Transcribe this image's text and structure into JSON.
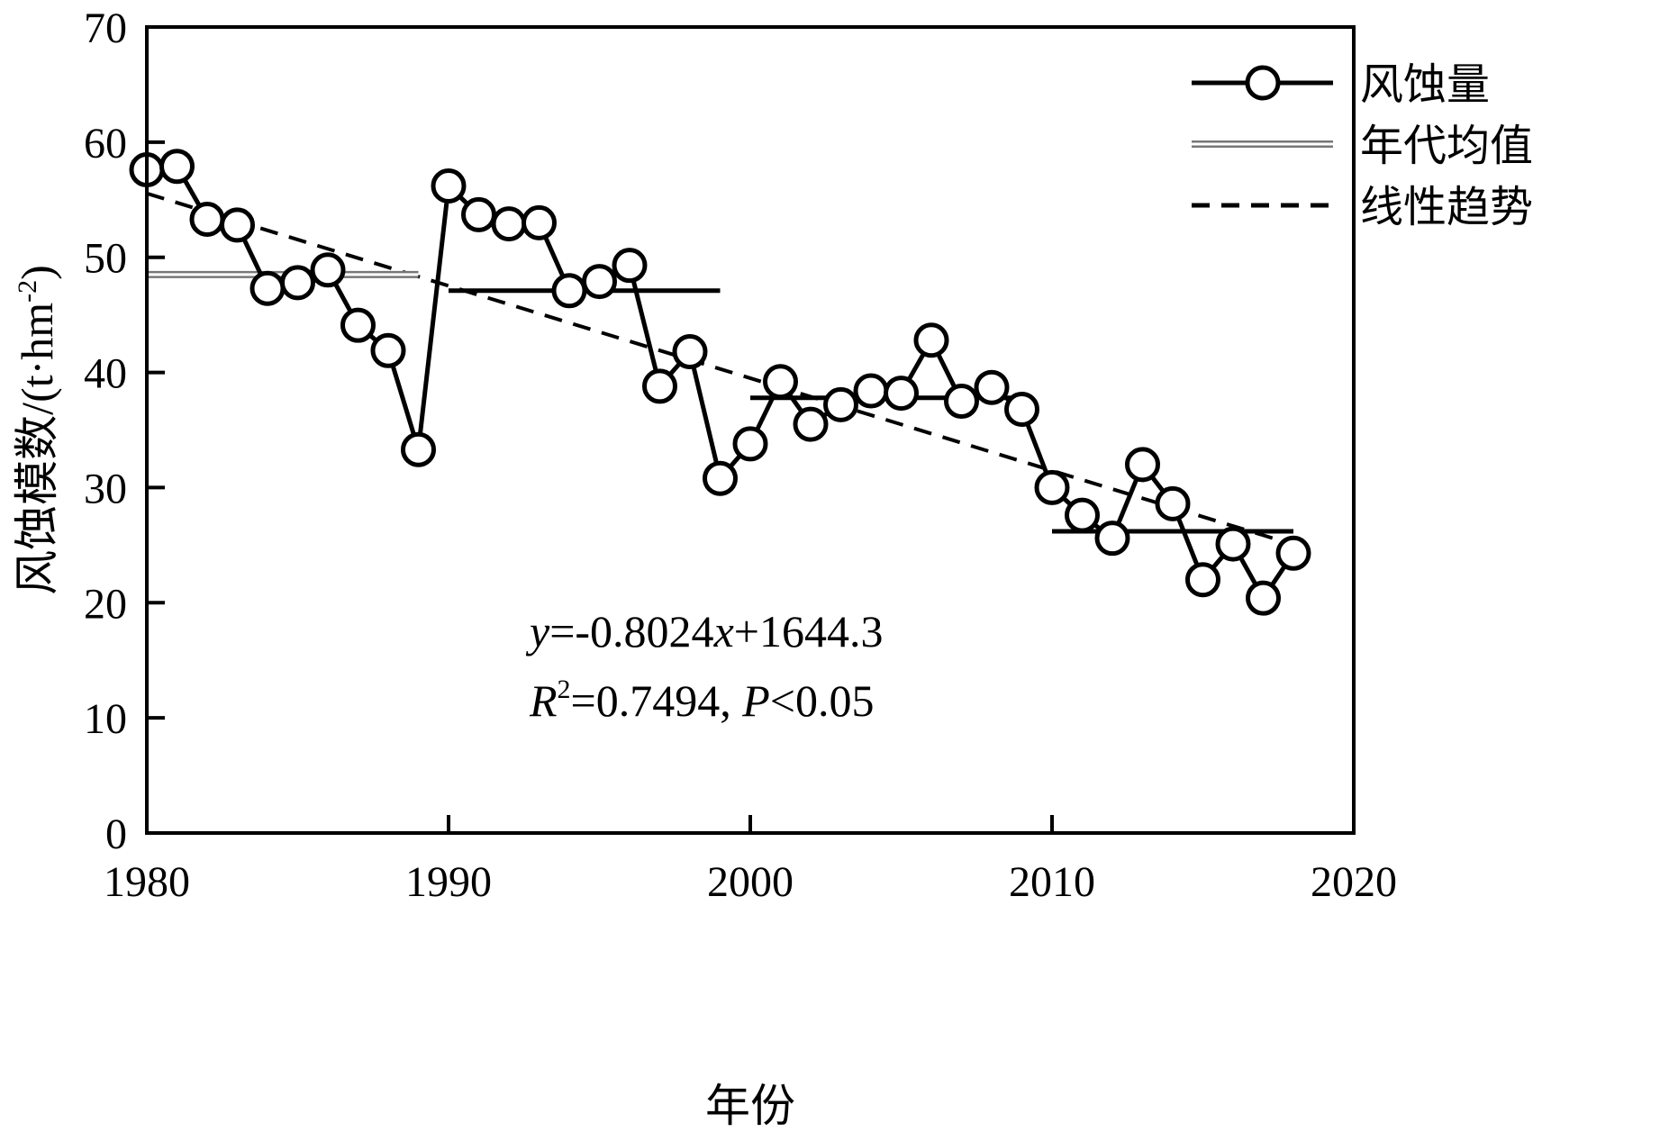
{
  "chart_data": {
    "type": "line",
    "xlabel": "年份",
    "ylabel": "风蚀模数/(t·hm",
    "ylabel_sup": "-2",
    "ylabel_tail": ")",
    "xlim": [
      1980,
      2020
    ],
    "ylim": [
      0,
      70
    ],
    "x_ticks": [
      1980,
      1990,
      2000,
      2010,
      2020
    ],
    "y_ticks": [
      0,
      10,
      20,
      30,
      40,
      50,
      60,
      70
    ],
    "grid": false,
    "legend_position": "top-right",
    "legend": [
      {
        "label": "风蚀量",
        "style": "solid-line-circle-markers"
      },
      {
        "label": "年代均值",
        "style": "double-line"
      },
      {
        "label": "线性趋势",
        "style": "dashed-line"
      }
    ],
    "series": [
      {
        "name": "风蚀量",
        "x": [
          1980,
          1981,
          1982,
          1983,
          1984,
          1985,
          1986,
          1987,
          1988,
          1989,
          1990,
          1991,
          1992,
          1993,
          1994,
          1995,
          1996,
          1997,
          1998,
          1999,
          2000,
          2001,
          2002,
          2003,
          2004,
          2005,
          2006,
          2007,
          2008,
          2009,
          2010,
          2011,
          2012,
          2013,
          2014,
          2015,
          2016,
          2017,
          2018
        ],
        "y": [
          57.6,
          57.9,
          53.3,
          52.8,
          47.3,
          47.8,
          48.9,
          44.1,
          41.9,
          33.3,
          56.2,
          53.7,
          52.9,
          53.0,
          47.1,
          47.9,
          49.3,
          38.8,
          41.8,
          30.8,
          33.8,
          39.2,
          35.5,
          37.2,
          38.4,
          38.2,
          42.8,
          37.5,
          38.7,
          36.8,
          30.0,
          27.6,
          25.6,
          32.0,
          28.6,
          22.0,
          25.1,
          20.4,
          24.3
        ]
      },
      {
        "name": "年代均值",
        "segments": [
          {
            "x": [
              1980,
              1989
            ],
            "y": 48.5
          },
          {
            "x": [
              1990,
              1999
            ],
            "y": 47.1
          },
          {
            "x": [
              2000,
              2009
            ],
            "y": 37.8
          },
          {
            "x": [
              2010,
              2018
            ],
            "y": 26.2
          }
        ]
      },
      {
        "name": "线性趋势",
        "slope": -0.8024,
        "intercept": 1644.3,
        "x": [
          1980,
          2018
        ]
      }
    ],
    "annotations": {
      "equation": {
        "y_var": "y",
        "eq_part1": "=-0.8024",
        "x_var": "x",
        "eq_part2": "+1644.3"
      },
      "stats": {
        "r_var": "R",
        "r_sup": "2",
        "r_value": "=0.7494, ",
        "p_var": "P",
        "p_value": "<0.05"
      }
    }
  }
}
